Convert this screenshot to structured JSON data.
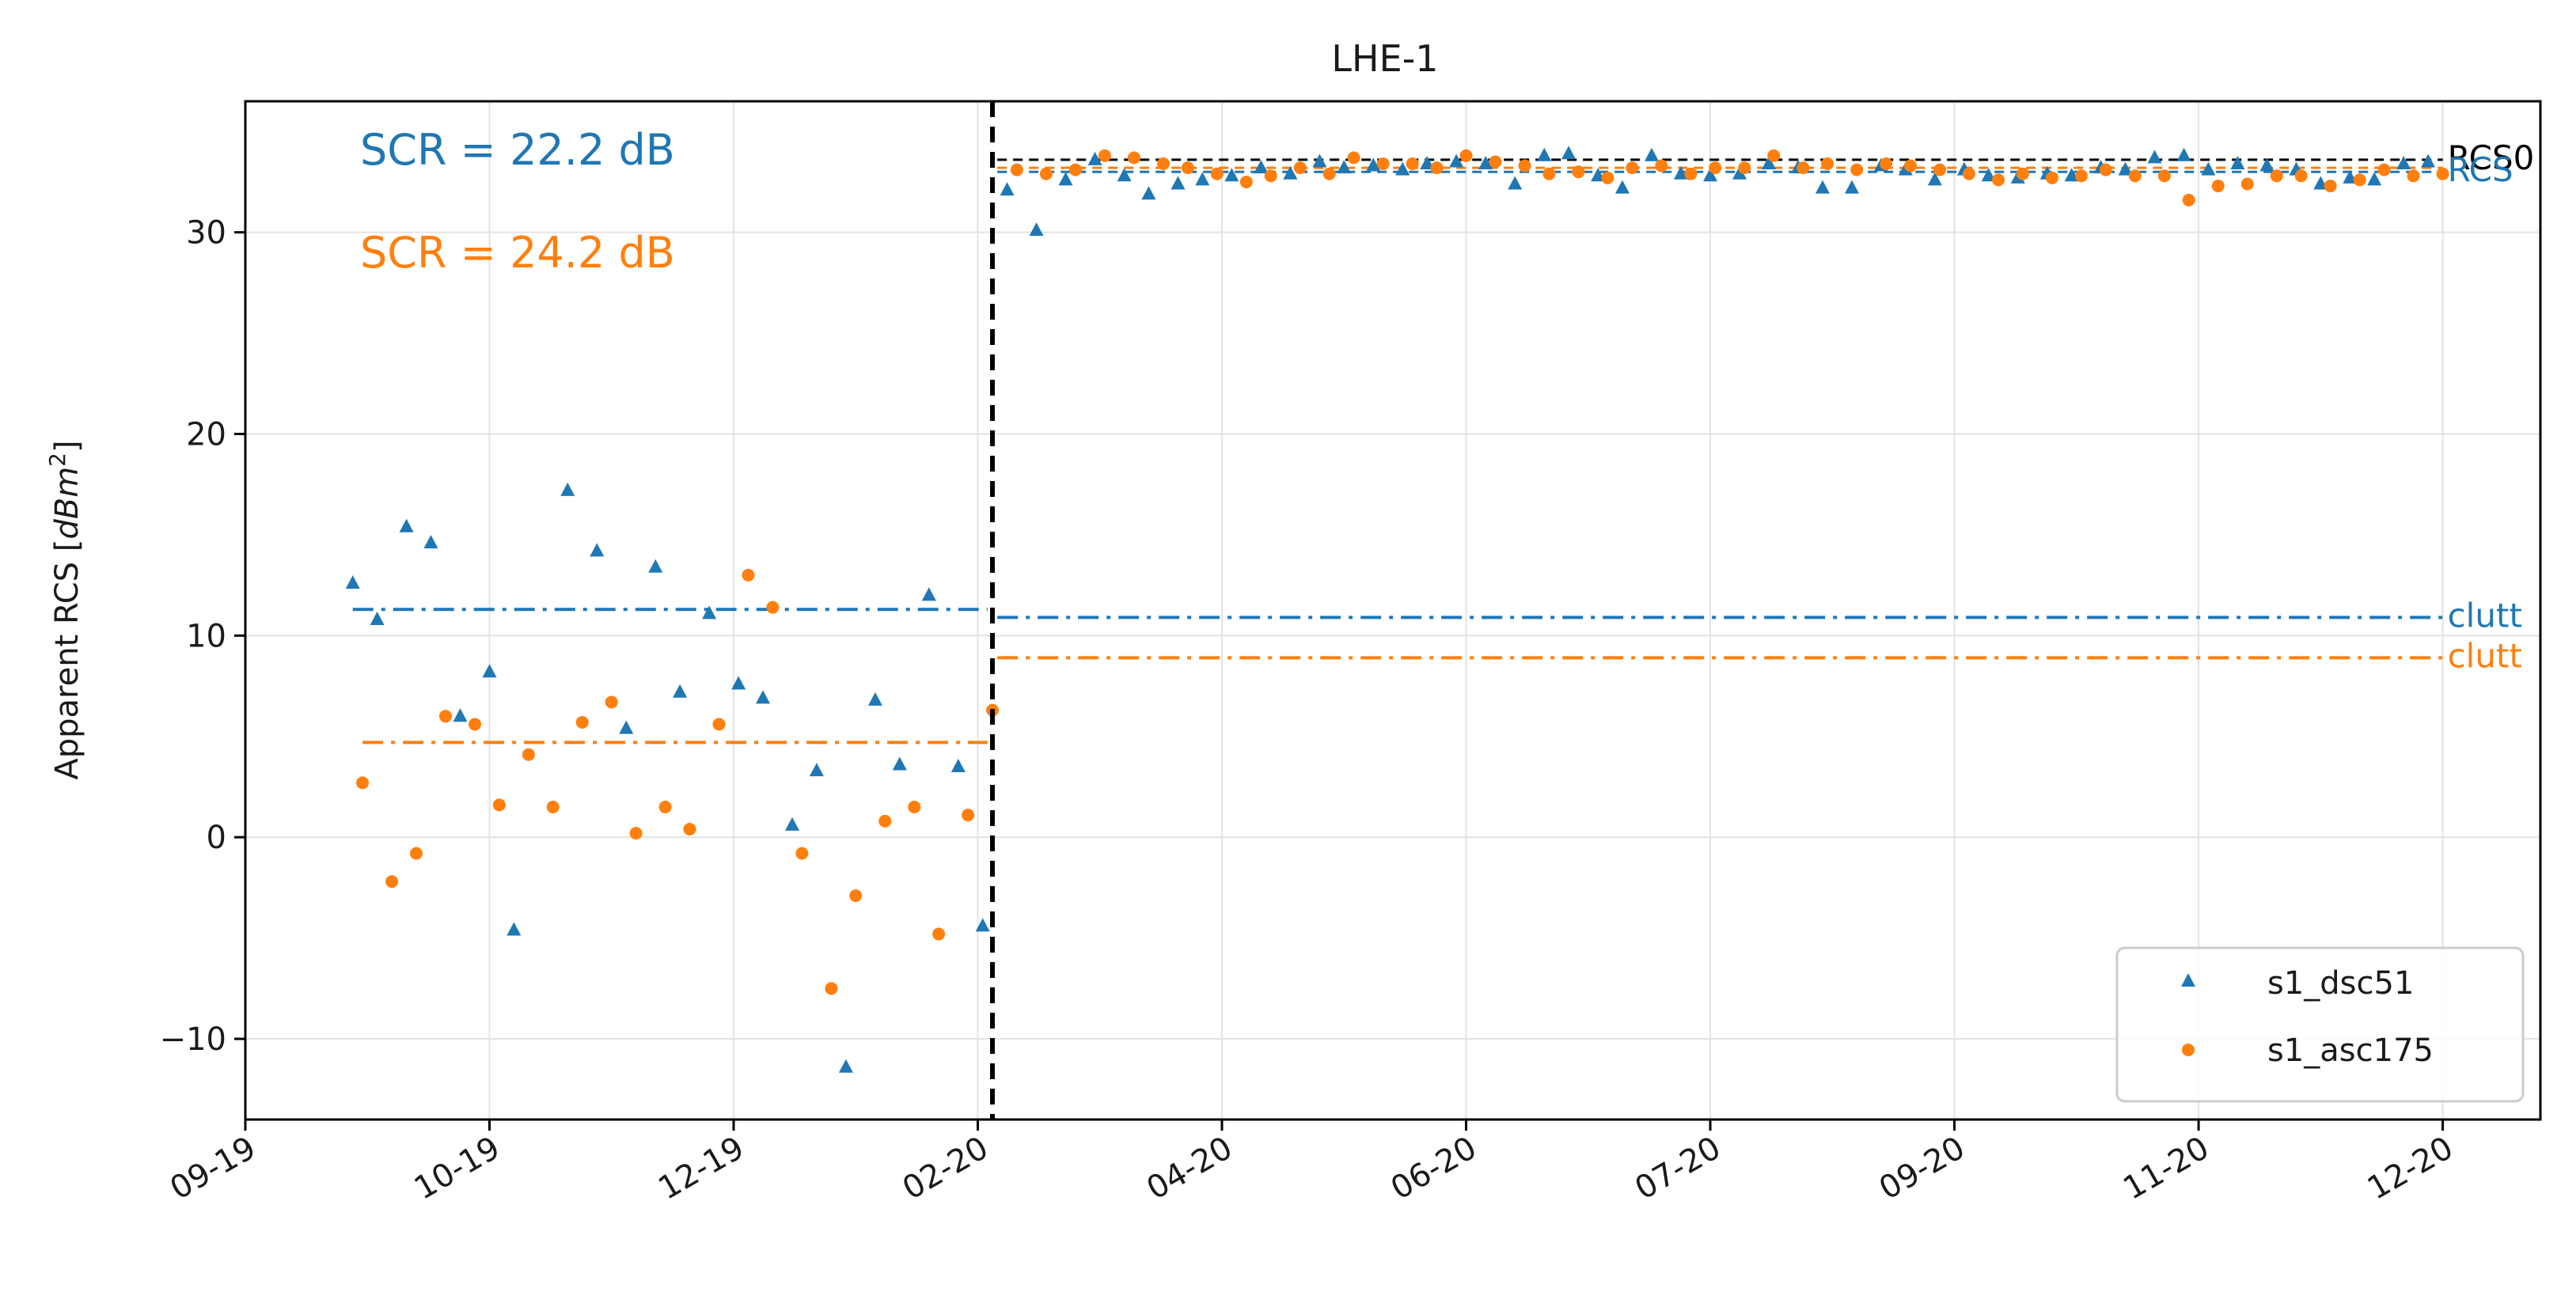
{
  "chart_data": {
    "type": "scatter",
    "title": "LHE-1",
    "xlabel": "",
    "ylabel": "Apparent RCS [dBm²]",
    "ylabel_parts": {
      "prefix": "Apparent RCS [",
      "unit_main": "dBm",
      "unit_sup": "2",
      "suffix": "]"
    },
    "ylim": [
      -14,
      36.5
    ],
    "xlim": [
      0,
      235
    ],
    "yticks": [
      {
        "value": -10,
        "label": "−10"
      },
      {
        "value": 0,
        "label": "0"
      },
      {
        "value": 10,
        "label": "10"
      },
      {
        "value": 20,
        "label": "20"
      },
      {
        "value": 30,
        "label": "30"
      }
    ],
    "xticks": [
      {
        "value": 0,
        "label": "09-19"
      },
      {
        "value": 25,
        "label": "10-19"
      },
      {
        "value": 50,
        "label": "12-19"
      },
      {
        "value": 75,
        "label": "02-20"
      },
      {
        "value": 100,
        "label": "04-20"
      },
      {
        "value": 125,
        "label": "06-20"
      },
      {
        "value": 150,
        "label": "07-20"
      },
      {
        "value": 175,
        "label": "09-20"
      },
      {
        "value": 200,
        "label": "11-20"
      },
      {
        "value": 225,
        "label": "12-20"
      }
    ],
    "grid": true,
    "legend_position": "bottom-right",
    "colors": {
      "s1_dsc51": "#1f77b4",
      "s1_asc175": "#ff7f0e",
      "black": "#000000"
    },
    "event_x": 76.5,
    "annotations": [
      {
        "text": "SCR = 22.2 dB",
        "color": "#1f77b4"
      },
      {
        "text": "SCR = 24.2 dB",
        "color": "#ff7f0e"
      }
    ],
    "hlines": [
      {
        "name": "rcs0",
        "label": "RCS0",
        "y": 33.6,
        "x0": 77,
        "x1": 225,
        "color": "#000000",
        "style": "dashed"
      },
      {
        "name": "rcs-blue",
        "label": "RCS",
        "y": 33.0,
        "x0": 77,
        "x1": 225,
        "color": "#1f77b4",
        "style": "dashed"
      },
      {
        "name": "rcs-orange",
        "label": "",
        "y": 33.2,
        "x0": 77,
        "x1": 225,
        "color": "#ff7f0e",
        "style": "dashed"
      },
      {
        "name": "clutter-pre-blue",
        "label": "",
        "y": 11.3,
        "x0": 11,
        "x1": 76,
        "color": "#1f77b4",
        "style": "dashdot"
      },
      {
        "name": "clutter-post-blue",
        "label": "clutt",
        "y": 10.9,
        "x0": 77,
        "x1": 225,
        "color": "#1f77b4",
        "style": "dashdot"
      },
      {
        "name": "clutter-pre-orange",
        "label": "",
        "y": 4.7,
        "x0": 12,
        "x1": 76,
        "color": "#ff7f0e",
        "style": "dashdot"
      },
      {
        "name": "clutter-post-orange",
        "label": "clutt",
        "y": 8.9,
        "x0": 77,
        "x1": 225,
        "color": "#ff7f0e",
        "style": "dashdot"
      }
    ],
    "series": [
      {
        "name": "s1_dsc51",
        "marker": "triangle",
        "color": "#1f77b4",
        "points": [
          [
            11,
            12.6
          ],
          [
            13.5,
            10.8
          ],
          [
            16.5,
            15.4
          ],
          [
            19,
            14.6
          ],
          [
            22,
            6.0
          ],
          [
            25,
            8.2
          ],
          [
            27.5,
            -4.6
          ],
          [
            33,
            17.2
          ],
          [
            36,
            14.2
          ],
          [
            39,
            5.4
          ],
          [
            42,
            13.4
          ],
          [
            44.5,
            7.2
          ],
          [
            47.5,
            11.1
          ],
          [
            50.5,
            7.6
          ],
          [
            53,
            6.9
          ],
          [
            56,
            0.6
          ],
          [
            58.5,
            3.3
          ],
          [
            61.5,
            -11.4
          ],
          [
            64.5,
            6.8
          ],
          [
            67,
            3.6
          ],
          [
            70,
            12.0
          ],
          [
            73,
            3.5
          ],
          [
            75.5,
            -4.4
          ],
          [
            78,
            32.1
          ],
          [
            81,
            30.1
          ],
          [
            84,
            32.6
          ],
          [
            87,
            33.6
          ],
          [
            90,
            32.8
          ],
          [
            92.5,
            31.9
          ],
          [
            95.5,
            32.4
          ],
          [
            98,
            32.6
          ],
          [
            101,
            32.8
          ],
          [
            104,
            33.2
          ],
          [
            107,
            32.9
          ],
          [
            110,
            33.5
          ],
          [
            112.5,
            33.2
          ],
          [
            115.5,
            33.3
          ],
          [
            118.5,
            33.1
          ],
          [
            121,
            33.4
          ],
          [
            124,
            33.5
          ],
          [
            127,
            33.4
          ],
          [
            130,
            32.4
          ],
          [
            133,
            33.8
          ],
          [
            135.5,
            33.9
          ],
          [
            138.5,
            32.8
          ],
          [
            141,
            32.2
          ],
          [
            144,
            33.8
          ],
          [
            147,
            32.9
          ],
          [
            150,
            32.8
          ],
          [
            153,
            32.9
          ],
          [
            156,
            33.4
          ],
          [
            159,
            33.2
          ],
          [
            161.5,
            32.2
          ],
          [
            164.5,
            32.2
          ],
          [
            167.5,
            33.3
          ],
          [
            170,
            33.1
          ],
          [
            173,
            32.6
          ],
          [
            176,
            33.1
          ],
          [
            178.5,
            32.8
          ],
          [
            181.5,
            32.7
          ],
          [
            184.5,
            32.9
          ],
          [
            187,
            32.8
          ],
          [
            190,
            33.2
          ],
          [
            192.5,
            33.1
          ],
          [
            195.5,
            33.7
          ],
          [
            198.5,
            33.8
          ],
          [
            201,
            33.1
          ],
          [
            204,
            33.4
          ],
          [
            207,
            33.3
          ],
          [
            210,
            33.1
          ],
          [
            212.5,
            32.4
          ],
          [
            215.5,
            32.7
          ],
          [
            218,
            32.6
          ],
          [
            221,
            33.4
          ],
          [
            223.5,
            33.5
          ]
        ]
      },
      {
        "name": "s1_asc175",
        "marker": "circle",
        "color": "#ff7f0e",
        "points": [
          [
            12,
            2.7
          ],
          [
            15,
            -2.2
          ],
          [
            17.5,
            -0.8
          ],
          [
            20.5,
            6.0
          ],
          [
            23.5,
            5.6
          ],
          [
            26,
            1.6
          ],
          [
            29,
            4.1
          ],
          [
            31.5,
            1.5
          ],
          [
            34.5,
            5.7
          ],
          [
            37.5,
            6.7
          ],
          [
            40,
            0.2
          ],
          [
            43,
            1.5
          ],
          [
            45.5,
            0.4
          ],
          [
            48.5,
            5.6
          ],
          [
            51.5,
            13.0
          ],
          [
            54,
            11.4
          ],
          [
            57,
            -0.8
          ],
          [
            60,
            -7.5
          ],
          [
            62.5,
            -2.9
          ],
          [
            65.5,
            0.8
          ],
          [
            68.5,
            1.5
          ],
          [
            71,
            -4.8
          ],
          [
            74,
            1.1
          ],
          [
            76.5,
            6.3
          ],
          [
            79,
            33.1
          ],
          [
            82,
            32.9
          ],
          [
            85,
            33.1
          ],
          [
            88,
            33.8
          ],
          [
            91,
            33.7
          ],
          [
            94,
            33.4
          ],
          [
            96.5,
            33.2
          ],
          [
            99.5,
            32.9
          ],
          [
            102.5,
            32.5
          ],
          [
            105,
            32.8
          ],
          [
            108,
            33.2
          ],
          [
            111,
            32.9
          ],
          [
            113.5,
            33.7
          ],
          [
            116.5,
            33.4
          ],
          [
            119.5,
            33.4
          ],
          [
            122,
            33.2
          ],
          [
            125,
            33.8
          ],
          [
            128,
            33.5
          ],
          [
            131,
            33.3
          ],
          [
            133.5,
            32.9
          ],
          [
            136.5,
            33.0
          ],
          [
            139.5,
            32.7
          ],
          [
            142,
            33.2
          ],
          [
            145,
            33.3
          ],
          [
            148,
            32.9
          ],
          [
            150.5,
            33.2
          ],
          [
            153.5,
            33.2
          ],
          [
            156.5,
            33.8
          ],
          [
            159.5,
            33.2
          ],
          [
            162,
            33.4
          ],
          [
            165,
            33.1
          ],
          [
            168,
            33.4
          ],
          [
            170.5,
            33.3
          ],
          [
            173.5,
            33.1
          ],
          [
            176.5,
            32.9
          ],
          [
            179.5,
            32.6
          ],
          [
            182,
            32.9
          ],
          [
            185,
            32.7
          ],
          [
            188,
            32.8
          ],
          [
            190.5,
            33.1
          ],
          [
            193.5,
            32.8
          ],
          [
            196.5,
            32.8
          ],
          [
            199,
            31.6
          ],
          [
            202,
            32.3
          ],
          [
            205,
            32.4
          ],
          [
            208,
            32.8
          ],
          [
            210.5,
            32.8
          ],
          [
            213.5,
            32.3
          ],
          [
            216.5,
            32.6
          ],
          [
            219,
            33.1
          ],
          [
            222,
            32.8
          ],
          [
            225,
            32.9
          ]
        ]
      }
    ]
  }
}
